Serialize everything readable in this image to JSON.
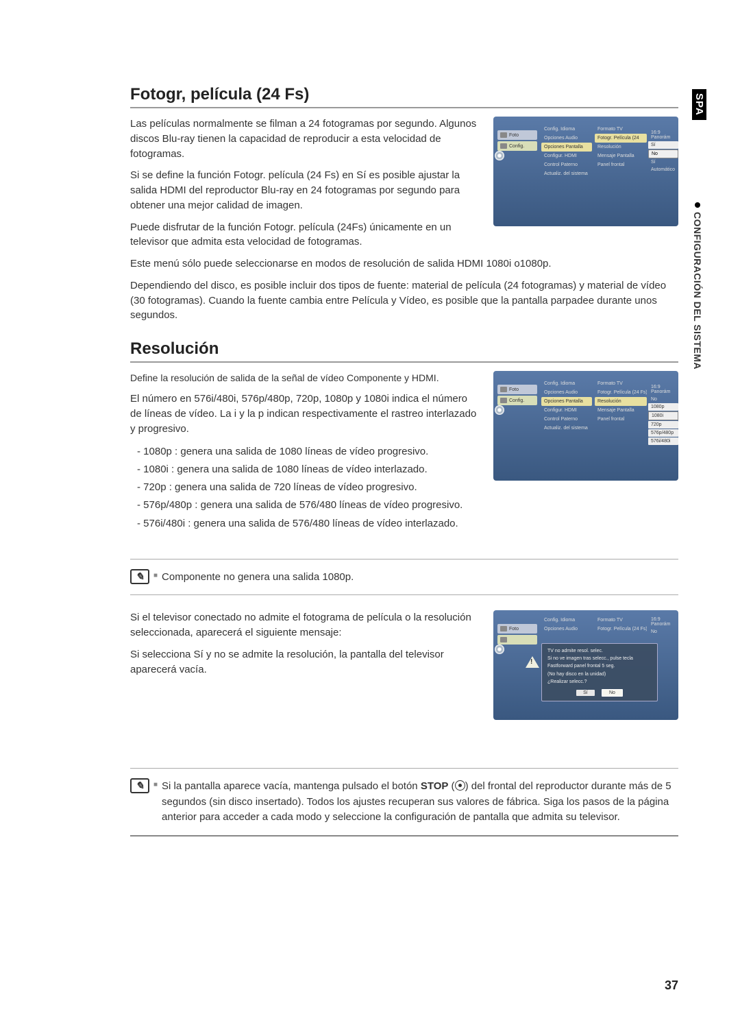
{
  "sidetab": {
    "lang": "SPA",
    "section": "CONFIGURACIÓN DEL SISTEMA"
  },
  "section1": {
    "heading": "Fotogr, película (24 Fs)",
    "p1": "Las películas normalmente se filman a 24 fotogramas por segundo. Algunos discos Blu-ray tienen la capacidad de reproducir a esta velocidad de fotogramas.",
    "p2": "Si se define la función Fotogr. película (24 Fs) en Sí es posible ajustar la salida HDMI del reproductor Blu-ray en 24 fotogramas por segundo para obtener una mejor calidad de imagen.",
    "p3": "Puede disfrutar de la función Fotogr. película (24Fs) únicamente en un televisor que admita esta velocidad de fotogramas.",
    "p4": "Este menú sólo puede seleccionarse en modos de resolución de salida HDMI 1080i o1080p.",
    "p5": "Dependiendo del disco, es posible incluir dos tipos de fuente: material de película (24 fotogramas) y material de vídeo (30 fotogramas). Cuando la fuente cambia entre Película y Vídeo, es posible que la pantalla parpadee durante unos segundos."
  },
  "tv1": {
    "tabs": {
      "foto": "Foto",
      "config": "Config."
    },
    "col2": [
      "Config. Idioma",
      "Opciones Audio",
      "Opciones Pantalla",
      "Configur. HDMI",
      "Control Paterno",
      "Actualiz. del sistema"
    ],
    "col3": [
      "Formato TV",
      "Fotogr. Película (24",
      "Resolución",
      "Mensaje Pantalla",
      "Panel frontal"
    ],
    "col4": [
      "16:9 Panorám",
      "Sí",
      "No",
      "Sí",
      "Automático"
    ],
    "col3_hl_index": 1,
    "col4_sel_index": 2
  },
  "section2": {
    "heading": "Resolución",
    "p1": "Define la resolución de salida de la señal de vídeo Componente y HDMI.",
    "p2": "El número en 576i/480i, 576p/480p, 720p, 1080p y 1080i indica el número de líneas de vídeo. La i y la p indican respectivamente el rastreo interlazado y progresivo.",
    "list": [
      "- 1080p : genera una salida de 1080 líneas de vídeo progresivo.",
      "- 1080i : genera una salida de 1080 líneas de vídeo interlazado.",
      "- 720p : genera una salida de 720 líneas de vídeo progresivo.",
      "- 576p/480p : genera una salida de 576/480 líneas de vídeo progresivo.",
      "- 576i/480i : genera una salida de 576/480 líneas de vídeo interlazado."
    ]
  },
  "tv2": {
    "col2": [
      "Config. Idioma",
      "Opciones Audio",
      "Opciones Pantalla",
      "Configur. HDMI",
      "Control Paterno",
      "Actualiz. del sistema"
    ],
    "col3": [
      "Formato TV",
      "Fotogr. Película (24 Fs)",
      "Resolución",
      "Mensaje Pantalla",
      "Panel frontal"
    ],
    "col3_hl_index": 2,
    "col4_header": "16:9 Panorám",
    "col4_sub": "No",
    "options": [
      "1080p",
      "1080i",
      "720p",
      "576p/480p",
      "576i/480i"
    ],
    "sel_index": 1
  },
  "note1": {
    "text": "Componente no genera una salida 1080p."
  },
  "section3": {
    "p1": "Si el televisor conectado no admite el fotograma de película o la resolución seleccionada, aparecerá el siguiente mensaje:",
    "p2": "Si selecciona Sí y no se admite la resolución, la pantalla del televisor aparecerá vacía."
  },
  "tv3": {
    "col2": [
      "Config. Idioma",
      "Opciones Audio"
    ],
    "col3": [
      "Formato TV",
      "Fotogr. Película (24 Fs)"
    ],
    "col3_right": [
      "16:9 Panorám",
      "No"
    ],
    "dialog": {
      "l1": "TV no admite resol. selec.",
      "l2": "Si no ve imagen tras selecc., pulse tecla",
      "l3": "Fastforward panel frontal 5 seg.",
      "l4": "(No hay disco en la unidad)",
      "l5": "¿Realizar selecc.?",
      "yes": "Sí",
      "no": "No"
    }
  },
  "note2": {
    "pre": "Si la pantalla aparece vacía, mantenga pulsado el botón ",
    "stop": "STOP",
    "post": " del frontal del reproductor durante más de 5 segundos (sin disco insertado). Todos los ajustes recuperan sus valores de fábrica. Siga los pasos de la página anterior para acceder a cada modo y seleccione la configuración de pantalla que admita su televisor."
  },
  "page_number": "37"
}
